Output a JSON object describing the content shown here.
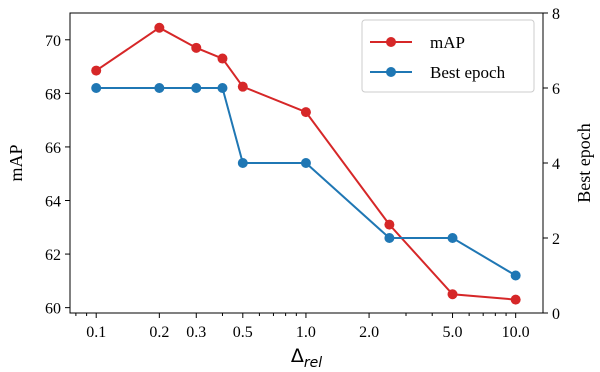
{
  "chart_data": {
    "type": "line",
    "x": [
      0.1,
      0.2,
      0.3,
      0.4,
      0.5,
      1.0,
      2.5,
      5.0,
      10.0
    ],
    "x_scale": "log",
    "x_ticks": [
      0.1,
      0.2,
      0.3,
      0.5,
      1.0,
      2.0,
      5.0,
      10.0
    ],
    "x_tick_labels": [
      "0.1",
      "0.2",
      "0.3",
      "0.5",
      "1.0",
      "2.0",
      "5.0",
      "10.0"
    ],
    "xlim": [
      0.075,
      13.5
    ],
    "xlabel_main": "Δ",
    "xlabel_sub": "rel",
    "ylabel": "mAP",
    "ylim": [
      59.8,
      71.0
    ],
    "y_ticks": [
      60,
      62,
      64,
      66,
      68,
      70
    ],
    "ylabel_right": "Best epoch",
    "ylim_right": [
      0,
      8
    ],
    "y_ticks_right": [
      0,
      2,
      4,
      6,
      8
    ],
    "grid": false,
    "legend_position": "top-right",
    "series": [
      {
        "name": "mAP",
        "axis": "left",
        "color": "#d62728",
        "values": [
          68.85,
          70.45,
          69.7,
          69.3,
          68.25,
          67.3,
          63.1,
          60.5,
          60.3
        ]
      },
      {
        "name": "Best epoch",
        "axis": "right",
        "color": "#1f77b4",
        "values": [
          6,
          6,
          6,
          6,
          4,
          4,
          2,
          2,
          1
        ]
      }
    ]
  }
}
